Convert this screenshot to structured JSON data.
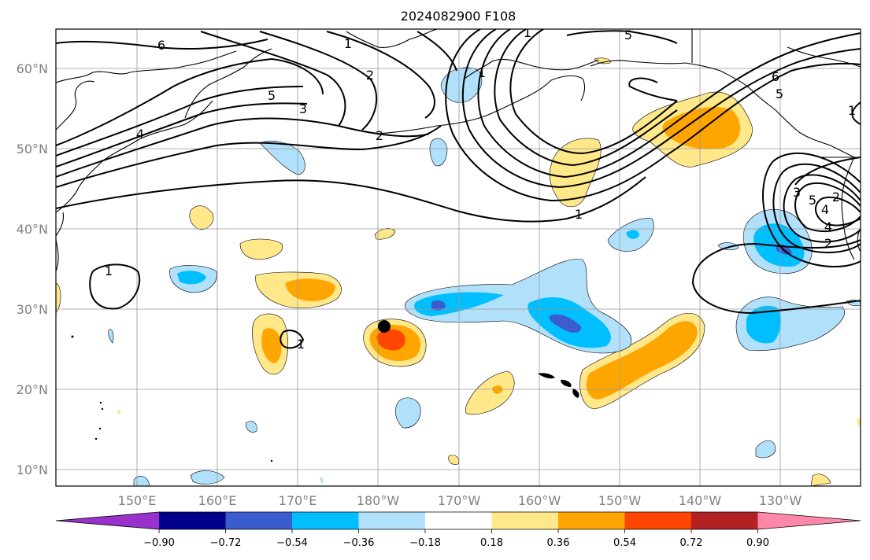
{
  "map": {
    "title": "2024082900 F108",
    "lat_labels": [
      "10°N",
      "20°N",
      "30°N",
      "40°N",
      "50°N",
      "60°N"
    ],
    "lon_labels": [
      "150°E",
      "160°E",
      "170°E",
      "180°W",
      "170°W",
      "160°W",
      "150°W",
      "140°W",
      "130°W"
    ],
    "extent": {
      "lon_min": 140,
      "lon_max": 240,
      "lat_min": 8,
      "lat_max": 65
    },
    "gridlines": true,
    "marker": {
      "name": "black dot",
      "lon": 180.2,
      "lat": 27.8
    }
  },
  "colorbar": {
    "ticks": [
      "−0.90",
      "−0.72",
      "−0.54",
      "−0.36",
      "−0.18",
      "0.18",
      "0.36",
      "0.54",
      "0.72",
      "0.90"
    ],
    "colors": [
      "#9932cc",
      "#00008b",
      "#3a5ccc",
      "#00bfff",
      "#b0e0fa",
      "#ffffff",
      "#ffe88a",
      "#ffa500",
      "#ff4500",
      "#b22222",
      "#ff88aa"
    ]
  },
  "contour_labels": [
    "6",
    "1",
    "2",
    "5",
    "4",
    "3",
    "2",
    "1",
    "5",
    "6",
    "5",
    "1",
    "2",
    "3",
    "4",
    "5",
    "4",
    "2",
    "1",
    "1",
    "1",
    "1"
  ]
}
